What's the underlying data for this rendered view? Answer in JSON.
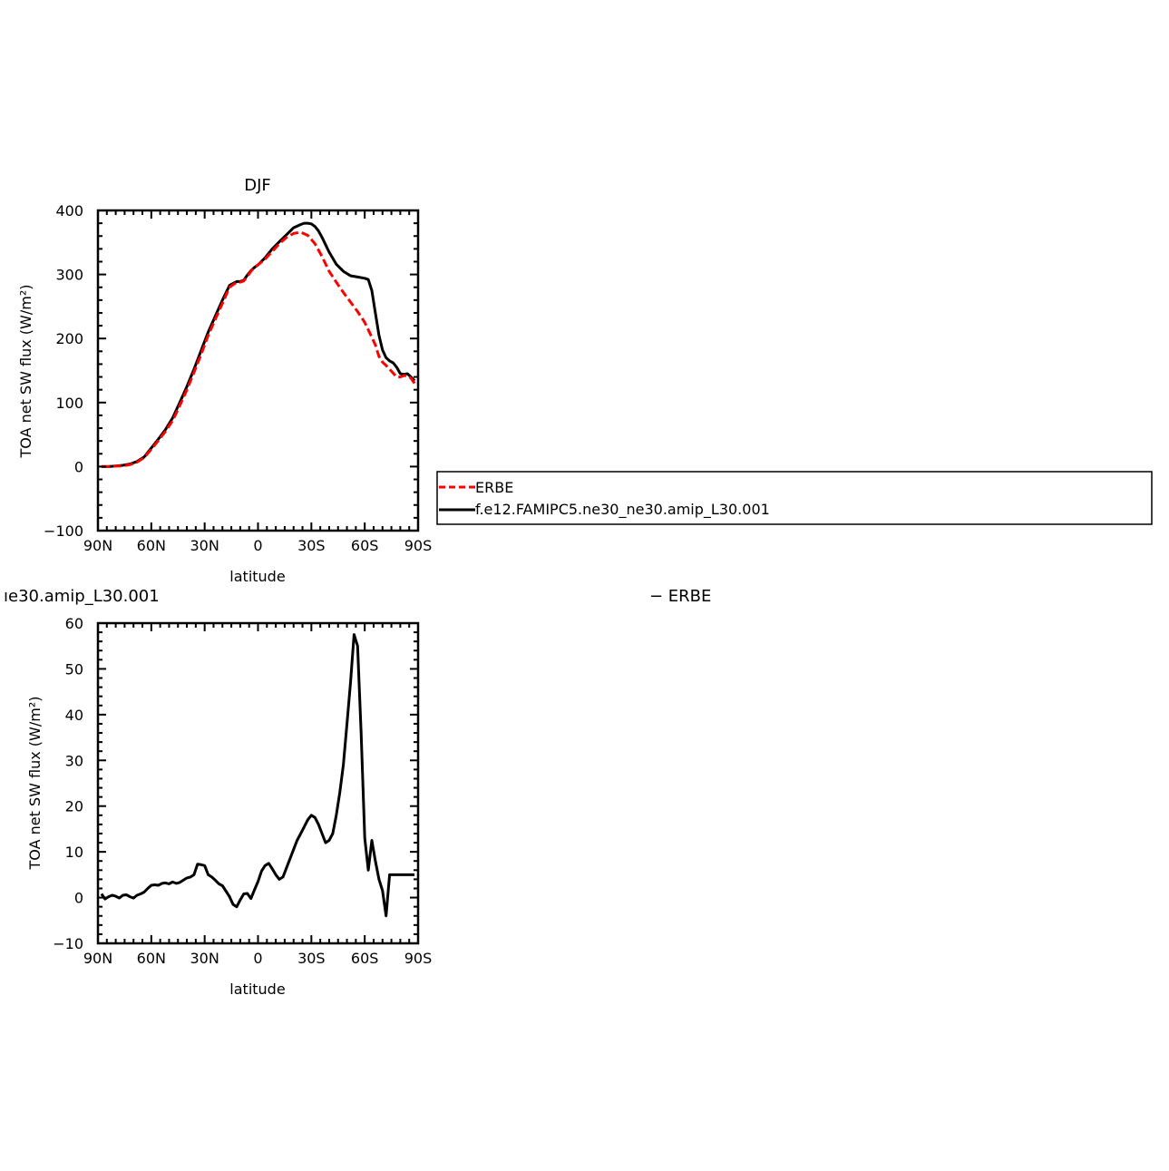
{
  "chart_data": [
    {
      "type": "line",
      "title": "DJF",
      "xlabel": "latitude",
      "ylabel": "TOA net SW flux (W/m²)",
      "xlim": [
        -90,
        90
      ],
      "ylim": [
        -100,
        400
      ],
      "xticks": [
        -90,
        -60,
        -30,
        0,
        30,
        60,
        90
      ],
      "xtick_labels": [
        "90N",
        "60N",
        "30N",
        "0",
        "30S",
        "60S",
        "90S"
      ],
      "yticks": [
        -100,
        0,
        100,
        200,
        300,
        400
      ],
      "ytick_labels": [
        "−100",
        "0",
        "100",
        "200",
        "300",
        "400"
      ],
      "grid": false,
      "legend": "right",
      "series": [
        {
          "name": "ERBE",
          "color": "#ff0000",
          "style": "dashed",
          "x": [
            -88,
            -84,
            -80,
            -76,
            -72,
            -68,
            -64,
            -60,
            -56,
            -52,
            -48,
            -44,
            -40,
            -36,
            -32,
            -28,
            -24,
            -20,
            -16,
            -12,
            -10,
            -8,
            -6,
            -4,
            -2,
            0,
            4,
            8,
            12,
            16,
            20,
            24,
            28,
            32,
            36,
            40,
            44,
            48,
            52,
            56,
            60,
            64,
            66,
            68,
            70,
            72,
            74,
            76,
            78,
            80,
            82,
            84,
            86,
            88
          ],
          "y": [
            0,
            0,
            1,
            1,
            3,
            7,
            14,
            27,
            41,
            55,
            72,
            95,
            120,
            147,
            175,
            205,
            230,
            255,
            280,
            288,
            288,
            290,
            297,
            305,
            311,
            315,
            324,
            336,
            348,
            358,
            364,
            366,
            361,
            348,
            328,
            305,
            288,
            272,
            257,
            242,
            225,
            202,
            190,
            172,
            163,
            158,
            152,
            146,
            140,
            140,
            142,
            142,
            138,
            130
          ]
        },
        {
          "name": "f.e12.FAMIPC5.ne30_ne30.amip_L30.001",
          "color": "#000000",
          "style": "solid",
          "x": [
            -88,
            -84,
            -80,
            -76,
            -72,
            -68,
            -64,
            -60,
            -56,
            -52,
            -48,
            -44,
            -40,
            -36,
            -32,
            -28,
            -24,
            -20,
            -16,
            -12,
            -10,
            -8,
            -6,
            -4,
            -2,
            0,
            4,
            8,
            12,
            16,
            20,
            24,
            26,
            28,
            30,
            32,
            34,
            36,
            40,
            44,
            48,
            52,
            56,
            60,
            62,
            64,
            66,
            68,
            70,
            72,
            74,
            76,
            78,
            80,
            82,
            84,
            86,
            88
          ],
          "y": [
            0,
            0,
            1,
            2,
            4,
            8,
            15,
            29,
            43,
            58,
            76,
            100,
            125,
            152,
            181,
            210,
            235,
            260,
            283,
            289,
            289,
            291,
            299,
            306,
            311,
            315,
            326,
            340,
            351,
            362,
            373,
            378,
            380,
            380,
            379,
            375,
            368,
            358,
            335,
            316,
            305,
            298,
            296,
            294,
            292,
            275,
            240,
            205,
            182,
            170,
            165,
            162,
            155,
            145,
            144,
            145,
            140,
            134
          ]
        }
      ]
    },
    {
      "type": "line",
      "title": "ıe30.amip_L30.001",
      "title_right": "− ERBE",
      "xlabel": "latitude",
      "ylabel": "TOA net SW flux (W/m²)",
      "xlim": [
        -90,
        90
      ],
      "ylim": [
        -10,
        60
      ],
      "xticks": [
        -90,
        -60,
        -30,
        0,
        30,
        60,
        90
      ],
      "xtick_labels": [
        "90N",
        "60N",
        "30N",
        "0",
        "30S",
        "60S",
        "90S"
      ],
      "yticks": [
        -10,
        0,
        10,
        20,
        30,
        40,
        50,
        60
      ],
      "ytick_labels": [
        "−10",
        "0",
        "10",
        "20",
        "30",
        "40",
        "50",
        "60"
      ],
      "grid": false,
      "series": [
        {
          "name": "",
          "color": "#000000",
          "style": "solid",
          "x": [
            -88,
            -86,
            -84,
            -82,
            -80,
            -78,
            -76,
            -74,
            -72,
            -70,
            -68,
            -66,
            -64,
            -62,
            -60,
            -58,
            -56,
            -54,
            -52,
            -50,
            -48,
            -46,
            -44,
            -42,
            -40,
            -38,
            -36,
            -34,
            -32,
            -30,
            -28,
            -26,
            -24,
            -22,
            -20,
            -18,
            -16,
            -14,
            -12,
            -10,
            -8,
            -6,
            -4,
            -2,
            0,
            2,
            4,
            6,
            8,
            10,
            12,
            14,
            16,
            18,
            20,
            22,
            24,
            26,
            28,
            30,
            32,
            34,
            36,
            38,
            40,
            42,
            44,
            46,
            48,
            50,
            52,
            54,
            56,
            58,
            60,
            62,
            64,
            66,
            68,
            70,
            72,
            74,
            76,
            78,
            80,
            82,
            84,
            86,
            88
          ],
          "y": [
            0.8,
            -0.3,
            0.2,
            0.5,
            0.3,
            -0.1,
            0.5,
            0.6,
            0.2,
            -0.1,
            0.5,
            0.8,
            1.2,
            2.0,
            2.7,
            2.8,
            2.7,
            3.1,
            3.2,
            3.0,
            3.4,
            3.1,
            3.3,
            3.8,
            4.3,
            4.5,
            5.0,
            7.3,
            7.2,
            7.0,
            5.0,
            4.5,
            3.8,
            3.0,
            2.6,
            1.4,
            0.2,
            -1.5,
            -2.0,
            -0.5,
            0.8,
            0.9,
            -0.2,
            1.7,
            3.5,
            5.8,
            7.0,
            7.5,
            6.3,
            5.0,
            4.0,
            4.5,
            6.5,
            8.5,
            10.5,
            12.5,
            14.0,
            15.5,
            17.0,
            18.0,
            17.5,
            16.0,
            14.0,
            12.0,
            12.5,
            14.0,
            18.0,
            23.0,
            29.0,
            38.0,
            47.0,
            57.5,
            55.0,
            36.0,
            13.0,
            6.0,
            12.5,
            8.0,
            4.0,
            1.5,
            -4.0,
            5.0,
            5.0,
            5.0,
            5.0,
            5.0,
            5.0,
            5.0,
            5.0
          ]
        }
      ]
    }
  ]
}
